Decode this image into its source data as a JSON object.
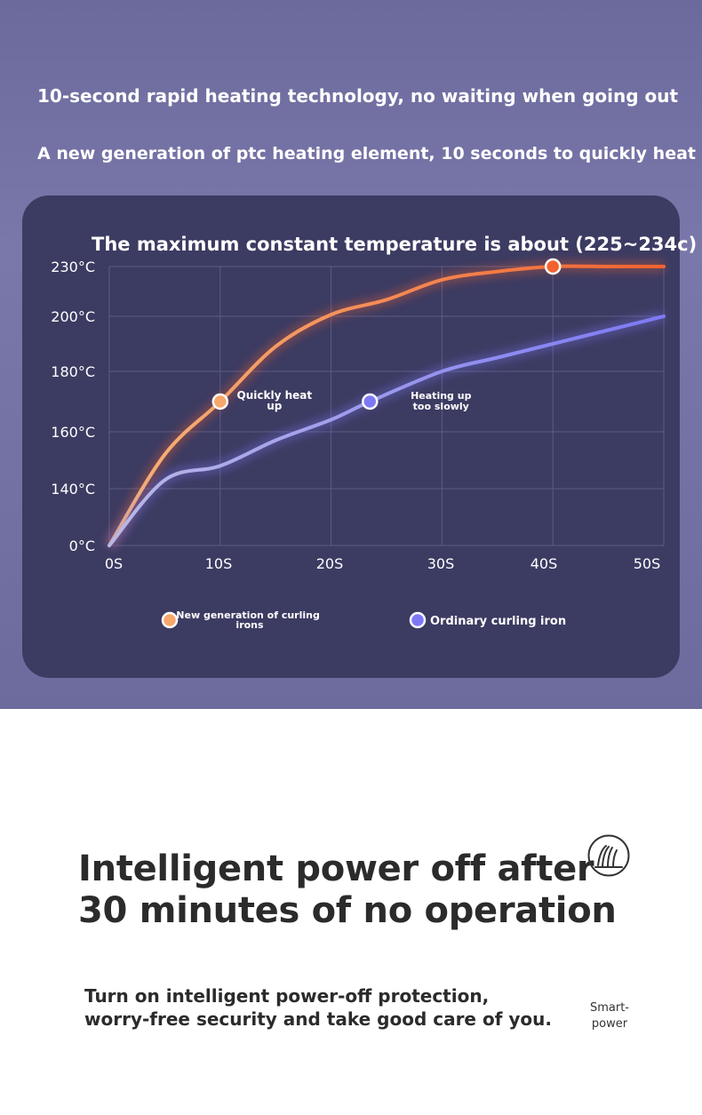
{
  "header": {
    "headline": "10-second rapid heating technology, no waiting when going out",
    "subheadline": "A new generation of ptc heating element, 10 seconds to quickly heat"
  },
  "chart_data": {
    "type": "line",
    "title": "The maximum constant temperature is about (225~234c)",
    "x_ticks": [
      "0S",
      "10S",
      "20S",
      "30S",
      "40S",
      "50S"
    ],
    "y_ticks": [
      "0°C",
      "140°C",
      "160°C",
      "180°C",
      "200°C",
      "230°C"
    ],
    "grid": true,
    "legend_placement": "bottom",
    "series": [
      {
        "name": "New generation of curling irons",
        "color_start": "#f6b37a",
        "color_end": "#f2622f",
        "x": [
          0,
          5,
          10,
          15,
          20,
          25,
          30,
          35,
          40,
          45,
          50
        ],
        "y": [
          0,
          152,
          170,
          189,
          201,
          210,
          222,
          227,
          230,
          230,
          230
        ]
      },
      {
        "name": "Ordinary curling iron",
        "color_start": "#b9b8e6",
        "color_end": "#7d79f5",
        "x": [
          0,
          5,
          10,
          15,
          20,
          23.5,
          30,
          35,
          40,
          45,
          50
        ],
        "y": [
          0,
          143,
          148,
          157,
          164,
          170,
          180,
          185,
          190,
          195,
          200
        ]
      }
    ],
    "annotations": [
      {
        "series": 0,
        "x": 10,
        "y": 170,
        "text": [
          "Quickly heat",
          "up"
        ]
      },
      {
        "series": 1,
        "x": 23.5,
        "y": 170,
        "text": [
          "Heating up",
          "too slowly"
        ]
      },
      {
        "series": 0,
        "x": 40,
        "y": 230,
        "text": []
      }
    ]
  },
  "legend": {
    "new_label": [
      "New generation of curling",
      "irons"
    ],
    "ordinary_label": "Ordinary curling iron"
  },
  "power_off": {
    "title_line1": "Intelligent power off after",
    "title_line2": "30 minutes of no operation",
    "desc_line1": "Turn on intelligent power-off protection,",
    "desc_line2": "worry-free security and take good care of you.",
    "icon": "hair-strand-icon",
    "icon_label_line1": "Smart-",
    "icon_label_line2": "power"
  }
}
